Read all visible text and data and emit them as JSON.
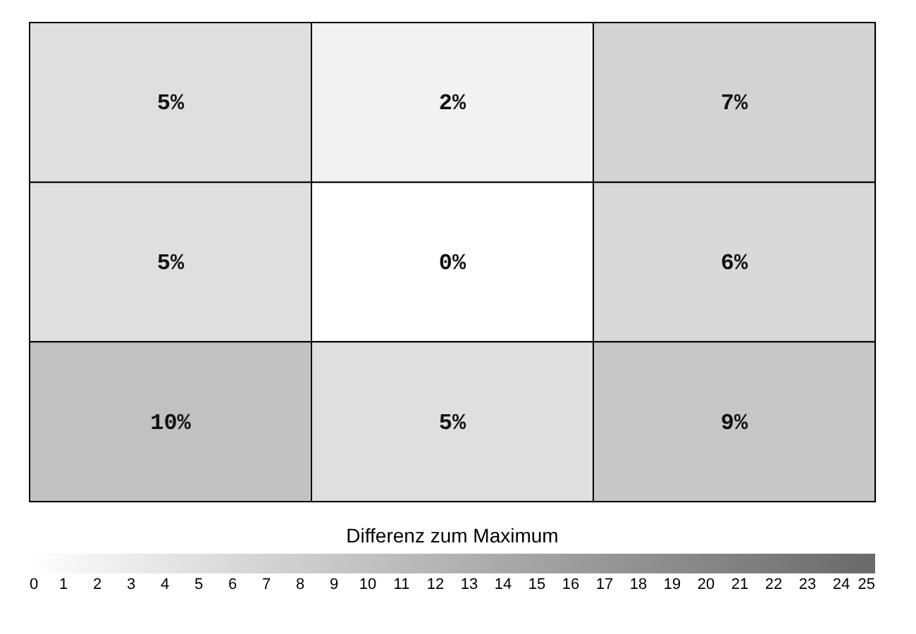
{
  "chart_data": {
    "type": "heatmap",
    "categories": [
      null,
      null,
      null
    ],
    "y_categories": [
      null,
      null,
      null
    ],
    "cells": [
      [
        5,
        2,
        7
      ],
      [
        5,
        0,
        6
      ],
      [
        10,
        5,
        9
      ]
    ],
    "cell_labels": [
      [
        "5%",
        "2%",
        "7%"
      ],
      [
        "5%",
        "0%",
        "6%"
      ],
      [
        "10%",
        "5%",
        "9%"
      ]
    ],
    "clabel": "Differenz zum Maximum",
    "clim": [
      0,
      25
    ],
    "cticks": [
      0,
      1,
      2,
      3,
      4,
      5,
      6,
      7,
      8,
      9,
      10,
      11,
      12,
      13,
      14,
      15,
      16,
      17,
      18,
      19,
      20,
      21,
      22,
      23,
      24,
      25
    ],
    "tick_labels": false
  }
}
